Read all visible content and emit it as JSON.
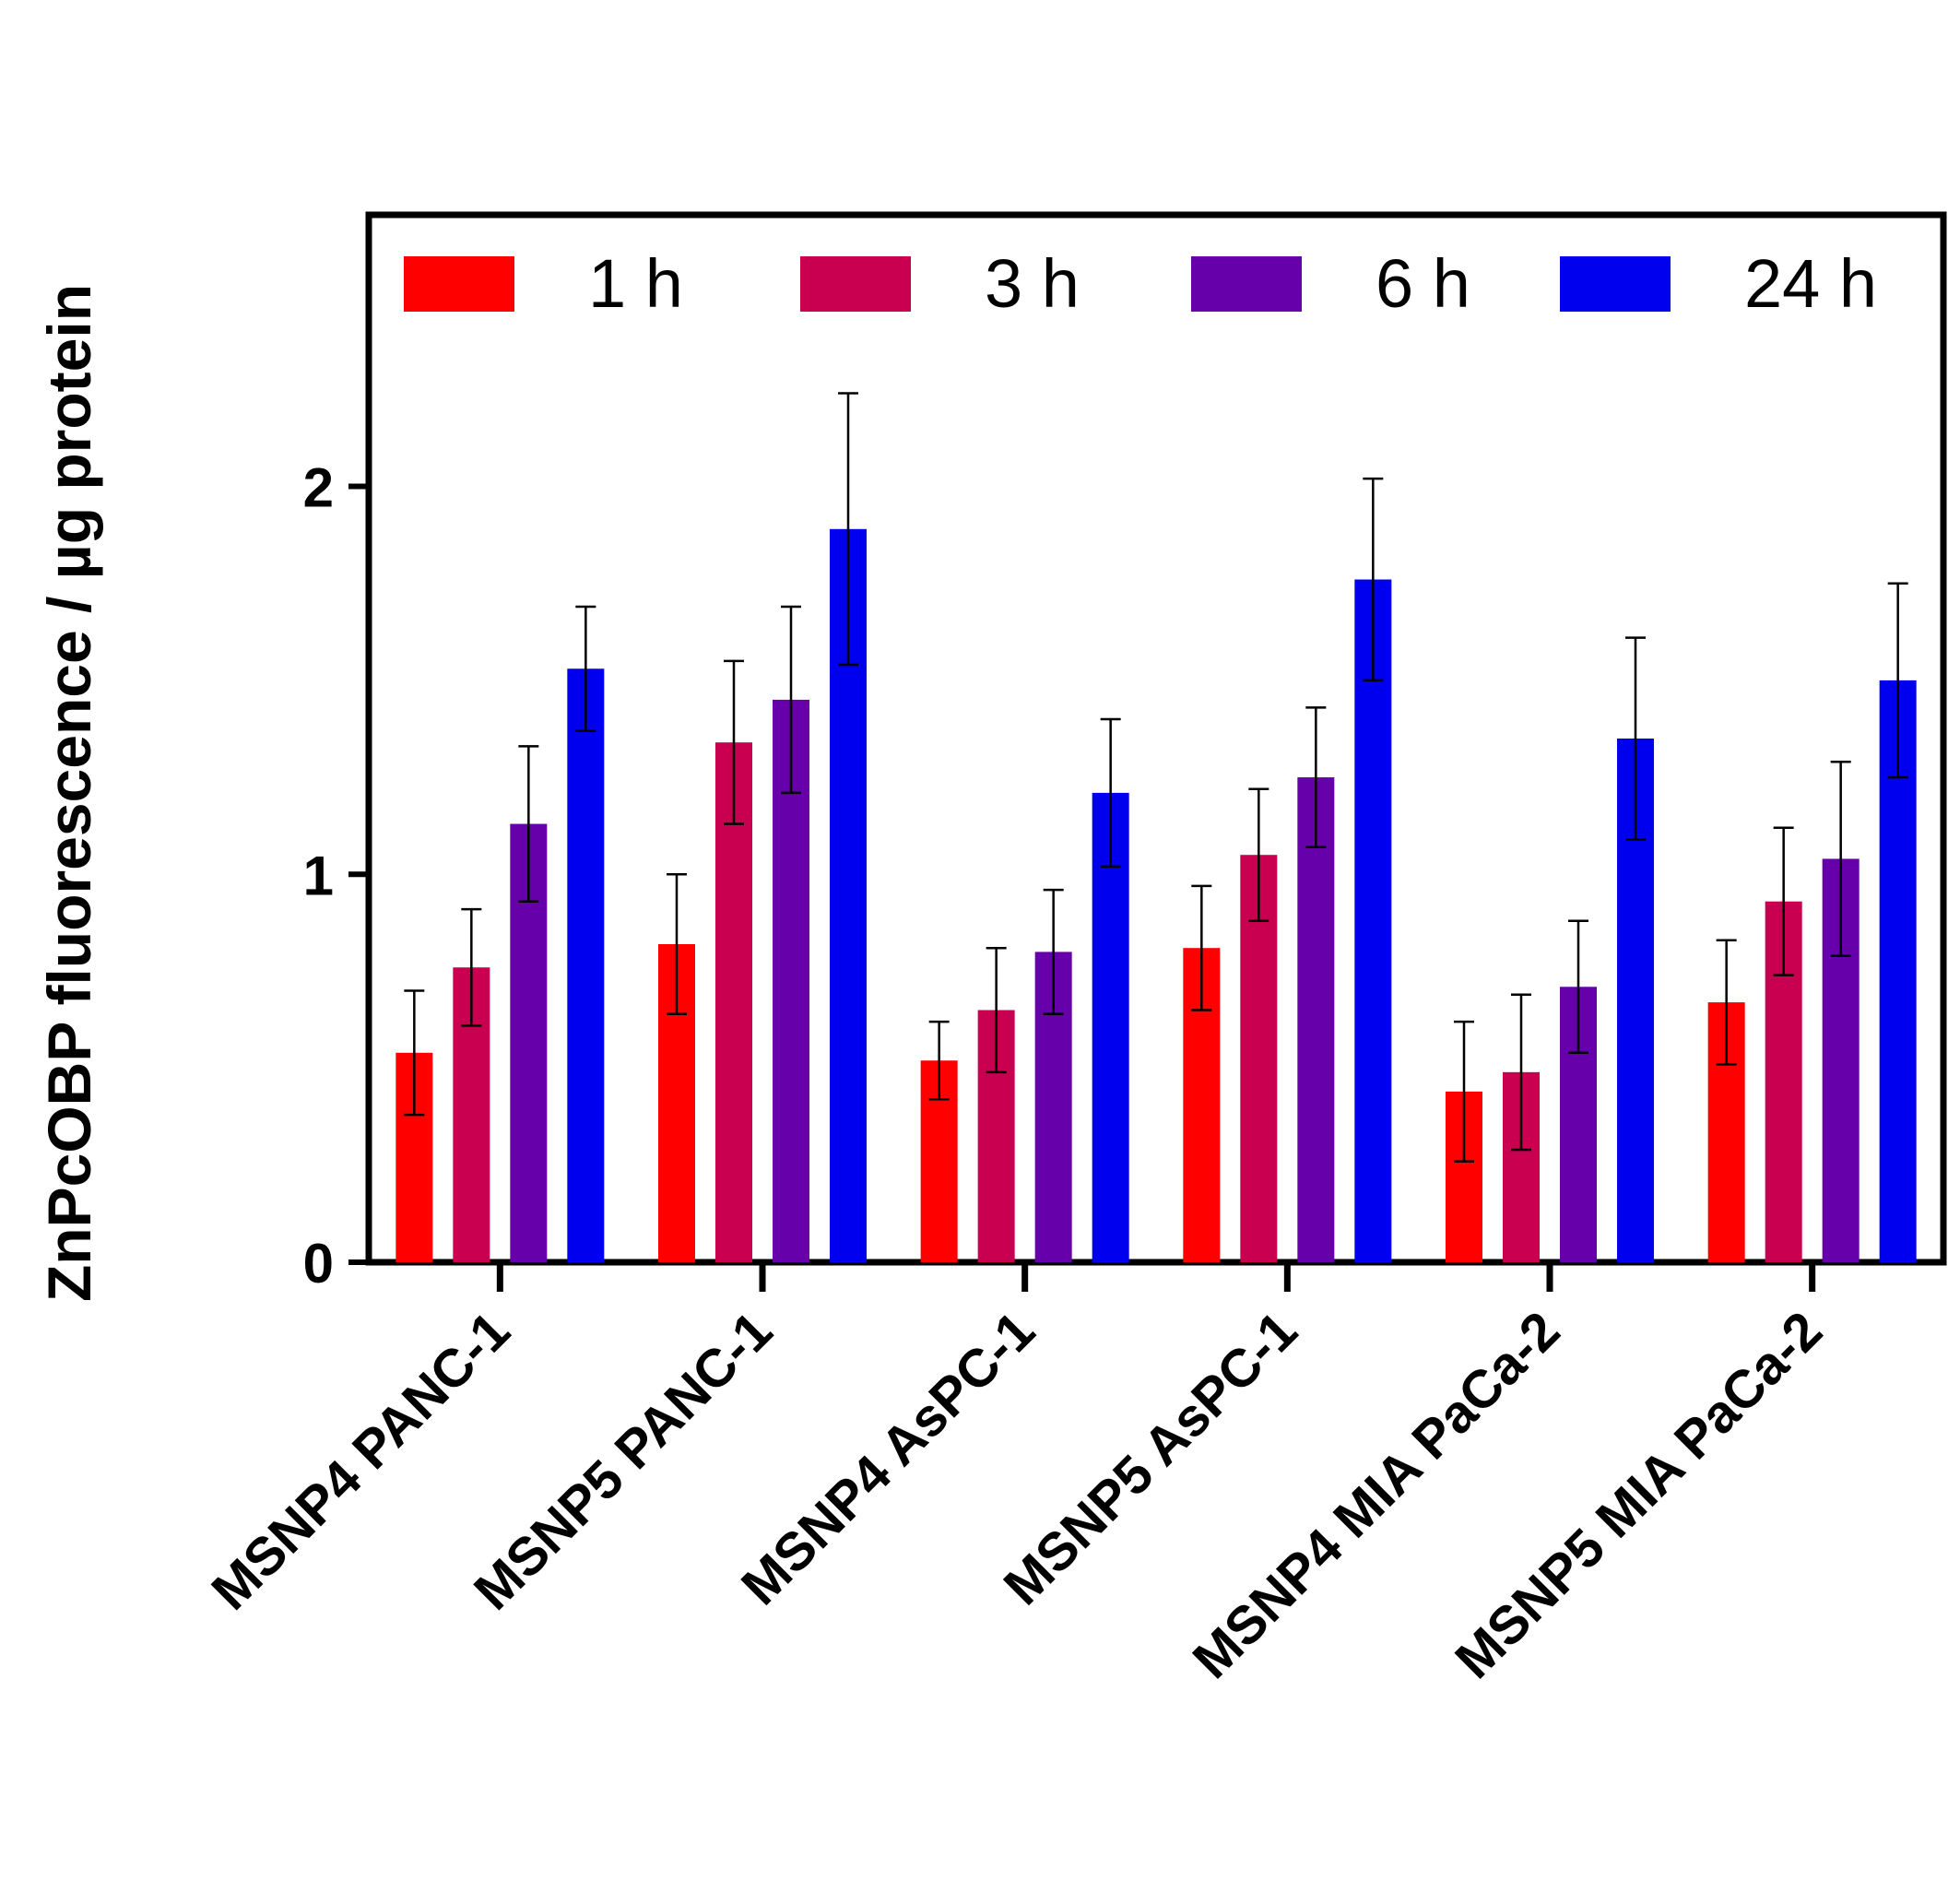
{
  "chart_data": {
    "type": "bar",
    "title": "",
    "xlabel": "",
    "ylabel": "ZnPcOBP fluorescence / µg protein",
    "ylim": [
      0,
      2.7
    ],
    "yticks": [
      "0",
      "1",
      "2"
    ],
    "grid": false,
    "legend_position": "top",
    "categories": [
      "MSNP4 PANC-1",
      "MSNP5 PANC-1",
      "MSNP4 AsPC-1",
      "MSNP5 AsPC-1",
      "MSNP4 MIA PaCa-2",
      "MSNP5 MIA PaCa-2"
    ],
    "series": [
      {
        "name": "1 h",
        "color": "#ff0000",
        "values": [
          0.54,
          0.82,
          0.52,
          0.81,
          0.44,
          0.67
        ],
        "errors": [
          0.16,
          0.18,
          0.1,
          0.16,
          0.18,
          0.16
        ]
      },
      {
        "name": "3 h",
        "color": "#c8004f",
        "values": [
          0.76,
          1.34,
          0.65,
          1.05,
          0.49,
          0.93
        ],
        "errors": [
          0.15,
          0.21,
          0.16,
          0.17,
          0.2,
          0.19
        ]
      },
      {
        "name": "6 h",
        "color": "#6600aa",
        "values": [
          1.13,
          1.45,
          0.8,
          1.25,
          0.71,
          1.04
        ],
        "errors": [
          0.2,
          0.24,
          0.16,
          0.18,
          0.17,
          0.25
        ]
      },
      {
        "name": "24 h",
        "color": "#0000ee",
        "values": [
          1.53,
          1.89,
          1.21,
          1.76,
          1.35,
          1.5
        ],
        "errors": [
          0.16,
          0.35,
          0.19,
          0.26,
          0.26,
          0.25
        ]
      }
    ]
  }
}
